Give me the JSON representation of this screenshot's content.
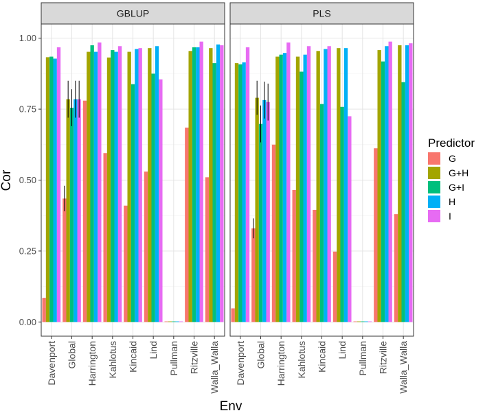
{
  "chart_data": {
    "type": "bar",
    "subtype": "grouped-faceted",
    "xlabel": "Env",
    "ylabel": "Cor",
    "ylim": [
      0,
      1.0
    ],
    "yticks": [
      "0.00",
      "0.25",
      "0.50",
      "0.75",
      "1.00"
    ],
    "ytick_values": [
      0,
      0.25,
      0.5,
      0.75,
      1.0
    ],
    "legend": {
      "title": "Predictor",
      "position": "right",
      "entries": [
        {
          "name": "G",
          "color": "#F8766D"
        },
        {
          "name": "G+H",
          "color": "#A3A500"
        },
        {
          "name": "G+I",
          "color": "#00BF7D"
        },
        {
          "name": "H",
          "color": "#00B0F6"
        },
        {
          "name": "I",
          "color": "#E76BF3"
        }
      ]
    },
    "categories": [
      "Davenport",
      "Global",
      "Harrington",
      "Kahlotus",
      "Kincaid",
      "Lind",
      "Pullman",
      "Ritzville",
      "Walla_Walla"
    ],
    "panels": [
      {
        "title": "GBLUP",
        "series": [
          {
            "name": "G",
            "values": [
              0.085,
              0.435,
              0.78,
              0.595,
              0.41,
              0.53,
              0.0,
              0.685,
              0.51
            ]
          },
          {
            "name": "G+H",
            "values": [
              0.933,
              0.785,
              0.952,
              0.932,
              0.952,
              0.965,
              0.0,
              0.955,
              0.965
            ]
          },
          {
            "name": "G+I",
            "values": [
              0.935,
              0.755,
              0.975,
              0.958,
              0.838,
              0.875,
              0.0,
              0.968,
              0.912
            ]
          },
          {
            "name": "H",
            "values": [
              0.928,
              0.785,
              0.952,
              0.952,
              0.962,
              0.972,
              0.0,
              0.968,
              0.978
            ]
          },
          {
            "name": "I",
            "values": [
              0.968,
              0.785,
              0.985,
              0.972,
              0.965,
              0.855,
              0.0,
              0.988,
              0.975
            ]
          }
        ],
        "errors": {
          "Global": [
            0.045,
            0.065,
            0.065,
            0.065,
            0.065
          ]
        }
      },
      {
        "title": "PLS",
        "series": [
          {
            "name": "G",
            "values": [
              0.048,
              0.33,
              0.625,
              0.465,
              0.395,
              0.248,
              0.0,
              0.612,
              0.38
            ]
          },
          {
            "name": "G+H",
            "values": [
              0.912,
              0.79,
              0.935,
              0.935,
              0.955,
              0.965,
              0.0,
              0.958,
              0.975
            ]
          },
          {
            "name": "G+I",
            "values": [
              0.908,
              0.698,
              0.942,
              0.882,
              0.768,
              0.758,
              0.0,
              0.918,
              0.845
            ]
          },
          {
            "name": "H",
            "values": [
              0.915,
              0.782,
              0.948,
              0.942,
              0.962,
              0.965,
              0.0,
              0.972,
              0.975
            ]
          },
          {
            "name": "I",
            "values": [
              0.968,
              0.775,
              0.985,
              0.972,
              0.972,
              0.725,
              0.0,
              0.988,
              0.982
            ]
          }
        ],
        "errors": {
          "Global": [
            0.035,
            0.06,
            0.065,
            0.065,
            0.065
          ]
        }
      }
    ]
  }
}
